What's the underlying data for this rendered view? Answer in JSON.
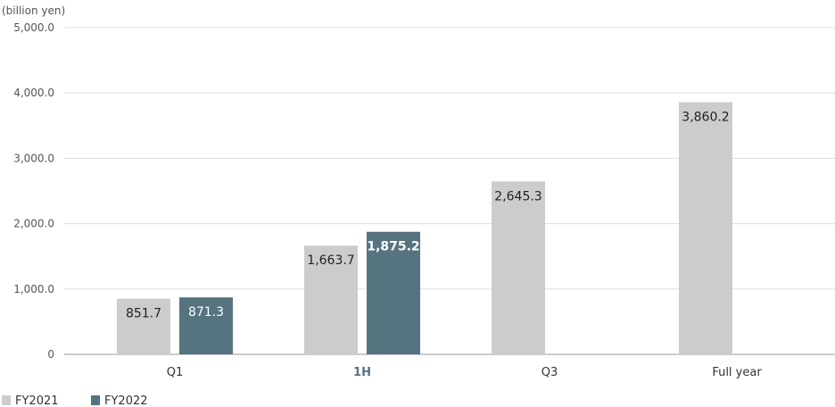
{
  "colors": {
    "fy2021": "#cccccc",
    "fy2022": "#567380",
    "grid": "#dddddd",
    "axis": "#999999",
    "highlight": "#567380"
  },
  "chart_data": {
    "type": "bar",
    "unit_label": "(billion yen)",
    "categories": [
      "Q1",
      "1H",
      "Q3",
      "Full year"
    ],
    "highlight_category": "1H",
    "ylim": [
      0,
      5000
    ],
    "yticks": [
      0,
      1000,
      2000,
      3000,
      4000,
      5000
    ],
    "ytick_labels": [
      "0",
      "1,000.0",
      "2,000.0",
      "3,000.0",
      "4,000.0",
      "5,000.0"
    ],
    "grid": true,
    "legend_position": "bottom-left",
    "series": [
      {
        "name": "FY2021",
        "values": [
          851.7,
          1663.7,
          2645.3,
          3860.2
        ],
        "labels": [
          "851.7",
          "1,663.7",
          "2,645.3",
          "3,860.2"
        ]
      },
      {
        "name": "FY2022",
        "values": [
          871.3,
          1875.2,
          null,
          null
        ],
        "labels": [
          "871.3",
          "1,875.2",
          "",
          ""
        ]
      }
    ]
  }
}
